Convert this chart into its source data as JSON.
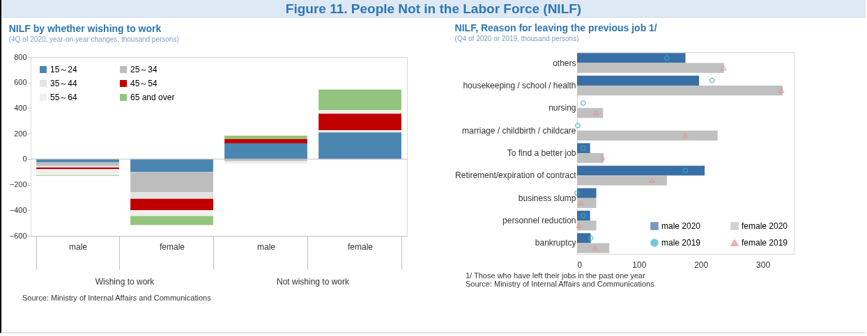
{
  "chart_data": [
    {
      "type": "other",
      "title": "Figure 11. People Not in the Labor Force (NILF)"
    },
    {
      "type": "bar",
      "title": "NILF by whether wishing to work",
      "subtitle": "(4Q of 2020, year-on-year changes, thousand persons)",
      "stacked": true,
      "categories": [
        "male",
        "female",
        "male",
        "female"
      ],
      "series": [
        {
          "name": "15～24",
          "color": "#4a86b0",
          "values": [
            -25,
            -100,
            125,
            210
          ]
        },
        {
          "name": "25～34",
          "color": "#bdbdbd",
          "values": [
            -25,
            -160,
            -15,
            null
          ]
        },
        {
          "name": "35～44",
          "color": "#e3e3e3",
          "values": [
            -15,
            -50,
            -10,
            18
          ]
        },
        {
          "name": "45～54",
          "color": "#c00000",
          "values": [
            -12,
            -90,
            35,
            130
          ]
        },
        {
          "name": "55～64",
          "color": "#efefef",
          "values": [
            -50,
            -45,
            -10,
            27
          ]
        },
        {
          "name": "65 and over",
          "color": "#93c47d",
          "values": [
            -5,
            -70,
            25,
            160
          ]
        }
      ],
      "ylim": [
        -600,
        800
      ],
      "yticks": [
        -600,
        -400,
        -200,
        0,
        200,
        400,
        600,
        800
      ],
      "legend": "top left",
      "ref_lines": [
        {
          "axis": "y",
          "value": 0,
          "color": "#bfbfbf"
        }
      ],
      "annotations": [
        "Wishing to work",
        "Not wishing to work",
        "Source: Ministry of Internal Affairs and Communications"
      ]
    },
    {
      "type": "bar",
      "orientation": "horizontal",
      "title": "NILF, Reason for leaving the previous job 1/",
      "subtitle": "(Q4 of 2020 or 2019, thousand persons)",
      "categories": [
        "others",
        "housekeeping / school / health",
        "nursing",
        "marriage / childbirth / childcare",
        "To find a better job",
        "Retirement/expiration of contract",
        "business slump",
        "personnel reduction",
        "bankruptcy"
      ],
      "series": [
        {
          "name": "male 2020",
          "color": "#3a6fa5",
          "values": [
            175,
            197,
            0,
            0,
            21,
            206,
            31,
            21,
            22
          ]
        },
        {
          "name": "female 2020",
          "color": "#c0c0c0",
          "values": [
            237,
            332,
            42,
            227,
            43,
            145,
            31,
            31,
            52
          ]
        },
        {
          "name": "male 2019",
          "type": "scatter",
          "marker": "circle",
          "color": "#35b3c4",
          "values": [
            145,
            218,
            10,
            1,
            10,
            175,
            0,
            10,
            22
          ]
        },
        {
          "name": "female 2019",
          "type": "scatter",
          "marker": "triangle",
          "color": "#f08a8a",
          "values": [
            237,
            330,
            31,
            175,
            41,
            121,
            6,
            3,
            29
          ]
        }
      ],
      "xlim": [
        0,
        350
      ],
      "xticks": [
        0,
        100,
        200,
        300
      ],
      "legend": "bottom right",
      "annotations": [
        "1/ Those who have left their jobs in the past one year",
        "Source: Ministry of Internal Affairs and Communications"
      ]
    }
  ]
}
